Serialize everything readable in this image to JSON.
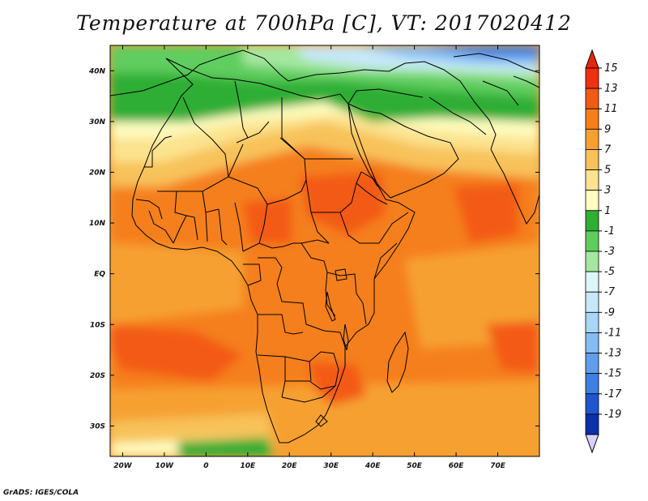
{
  "title": "Temperature at 700hPa [C], VT: 2017020412",
  "credit": "GrADS: IGES/COLA",
  "lat_labels": [
    "40N",
    "30N",
    "20N",
    "10N",
    "EQ",
    "10S",
    "20S",
    "30S"
  ],
  "lat_values": [
    40,
    30,
    20,
    10,
    0,
    -10,
    -20,
    -30
  ],
  "lon_labels": [
    "20W",
    "10W",
    "0",
    "10E",
    "20E",
    "30E",
    "40E",
    "50E",
    "60E",
    "70E"
  ],
  "lon_values": [
    -20,
    -10,
    0,
    10,
    20,
    30,
    40,
    50,
    60,
    70
  ],
  "map_extent": {
    "lon_min": -23,
    "lon_max": 80,
    "lat_min": -36,
    "lat_max": 45
  },
  "colorbar": {
    "labels": [
      "15",
      "13",
      "11",
      "9",
      "7",
      "5",
      "3",
      "1",
      "-1",
      "-3",
      "-5",
      "-7",
      "-9",
      "-11",
      "-13",
      "-15",
      "-17",
      "-19"
    ],
    "colors": [
      "#f03010",
      "#f35a14",
      "#f57f1a",
      "#f6a032",
      "#f8c25a",
      "#fbe38f",
      "#fefcbf",
      "#2fae34",
      "#5fcd5e",
      "#a4e7a0",
      "#def6f8",
      "#c6e8f8",
      "#a9d5f6",
      "#86bcf2",
      "#5f9eea",
      "#3f7ee2",
      "#1f56cc",
      "#0b30a8"
    ],
    "top_arrow_color": "#e8260c",
    "bottom_arrow_color": "#d6d2fa"
  },
  "field_colors": {
    "very_hot": "#f35a14",
    "hot": "#f57f1a",
    "warm": "#f6a032",
    "mild": "#f8c25a",
    "pale": "#fbe38f",
    "cream": "#fefcbf",
    "green_dark": "#2fae34",
    "green": "#5fcd5e",
    "green_light": "#a4e7a0",
    "cold_light": "#c6e8f8",
    "cold": "#86bcf2",
    "cold_deep": "#3f7ee2"
  },
  "border_color": "#000000"
}
